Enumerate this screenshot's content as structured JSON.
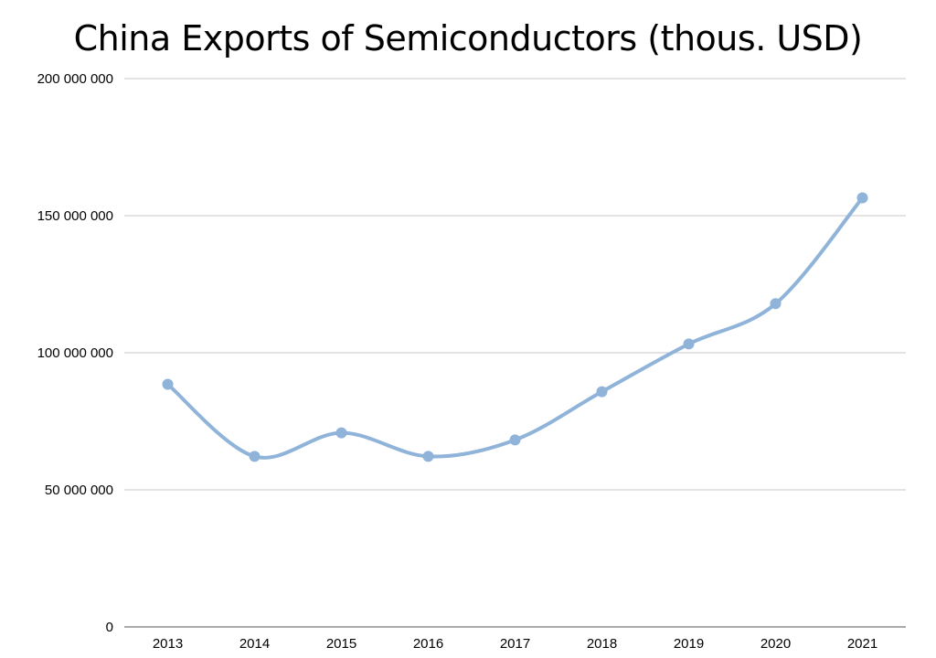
{
  "chart_data": {
    "type": "line",
    "title": "China Exports of Semiconductors (thous. USD)",
    "xlabel": "",
    "ylabel": "",
    "categories": [
      "2013",
      "2014",
      "2015",
      "2016",
      "2017",
      "2018",
      "2019",
      "2020",
      "2021"
    ],
    "series": [
      {
        "values": [
          88500000,
          62200000,
          70800000,
          62200000,
          68200000,
          85800000,
          103200000,
          117900000,
          156500000
        ],
        "color": "#8fb3d9"
      }
    ],
    "ylim": [
      0,
      200000000
    ],
    "yticks": [
      0,
      50000000,
      100000000,
      150000000,
      200000000
    ],
    "ytick_labels": [
      "0",
      "50 000 000",
      "100 000 000",
      "150 000 000",
      "200 000 000"
    ],
    "grid": true,
    "legend": "none",
    "smooth": true,
    "markers": true,
    "gridline_color": "#c8c8c8",
    "axis_color": "#555555"
  }
}
